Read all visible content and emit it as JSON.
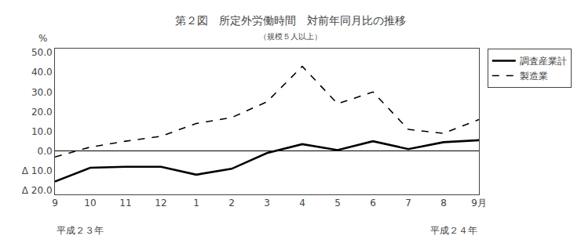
{
  "chart_data": {
    "type": "line",
    "title": "第２図　所定外労働時間　対前年同月比の推移",
    "subtitle": "（規模５人以上）",
    "y_label": "%",
    "annotations": [
      "平成２３年",
      "平成２４年"
    ],
    "categories": [
      "9",
      "10",
      "11",
      "12",
      "1",
      "2",
      "3",
      "4",
      "5",
      "6",
      "7",
      "8",
      "9月"
    ],
    "series": [
      {
        "name": "調査産業計",
        "color": "#000000",
        "line_style": "solid",
        "values": [
          -15.5,
          -8.5,
          -8.0,
          -8.0,
          -12.0,
          -9.0,
          -1.0,
          3.5,
          0.5,
          5.0,
          1.0,
          4.5,
          5.5
        ]
      },
      {
        "name": "製造業",
        "color": "#000000",
        "line_style": "dashed",
        "values": [
          -3.0,
          2.0,
          5.0,
          7.5,
          14.0,
          17.0,
          25.0,
          43.0,
          24.0,
          30.0,
          11.0,
          9.0,
          16.0
        ]
      }
    ],
    "ylim": [
      -22.0,
      52.0
    ],
    "yticks": [
      {
        "value": -20.0,
        "label": "Δ 20.0"
      },
      {
        "value": -10.0,
        "label": "Δ 10.0"
      },
      {
        "value": 0.0,
        "label": "0.0"
      },
      {
        "value": 10.0,
        "label": "10.0"
      },
      {
        "value": 20.0,
        "label": "20.0"
      },
      {
        "value": 30.0,
        "label": "30.0"
      },
      {
        "value": 40.0,
        "label": "40.0"
      },
      {
        "value": 50.0,
        "label": "50.0"
      }
    ],
    "grid": false,
    "legend": "upper right"
  }
}
